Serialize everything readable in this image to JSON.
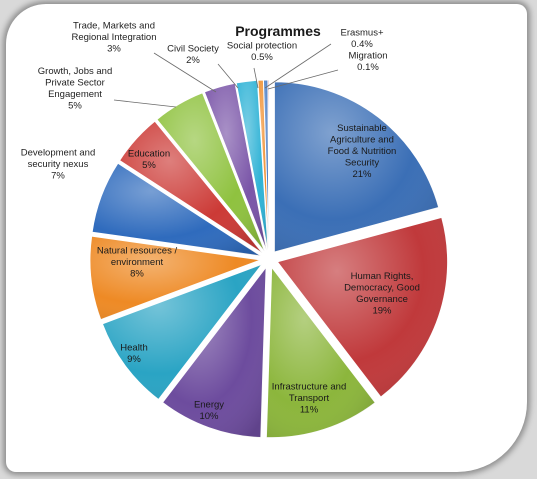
{
  "chart_data": {
    "type": "pie",
    "style": "exploded-3d",
    "title": "Programmes",
    "slices": [
      {
        "label": "Sustainable Agriculture and Food & Nutrition Security",
        "pct_label": "21%",
        "value": 21,
        "color": "#3b6fb6",
        "lines": [
          "Sustainable",
          "Agriculture and",
          "Food & Nutrition",
          "Security"
        ]
      },
      {
        "label": "Human Rights, Democracy, Good Governance",
        "pct_label": "19%",
        "value": 19,
        "color": "#c0393b",
        "lines": [
          "Human Rights,",
          "Democracy, Good",
          "Governance"
        ]
      },
      {
        "label": "Infrastructure and Transport",
        "pct_label": "11%",
        "value": 11,
        "color": "#8cb63c",
        "lines": [
          "Infrastructure and",
          "Transport"
        ]
      },
      {
        "label": "Energy",
        "pct_label": "10%",
        "value": 10,
        "color": "#6d4c9e",
        "lines": [
          "Energy"
        ]
      },
      {
        "label": "Health",
        "pct_label": "9%",
        "value": 9,
        "color": "#2aa4c4",
        "lines": [
          "Health"
        ]
      },
      {
        "label": "Natural resources / environment",
        "pct_label": "8%",
        "value": 8,
        "color": "#ee8a25",
        "lines": [
          "Natural resources /",
          "environment"
        ]
      },
      {
        "label": "Development and security nexus",
        "pct_label": "7%",
        "value": 7,
        "color": "#2f6bbd",
        "lines": [
          "Development and",
          "security nexus"
        ]
      },
      {
        "label": "Education",
        "pct_label": "5%",
        "value": 5,
        "color": "#cc3a36",
        "lines": [
          "Education"
        ]
      },
      {
        "label": "Growth, Jobs and Private Sector Engagement",
        "pct_label": "5%",
        "value": 5,
        "color": "#8fc23f",
        "lines": [
          "Growth, Jobs and",
          "Private Sector",
          "Engagement"
        ]
      },
      {
        "label": "Trade, Markets and Regional Integration",
        "pct_label": "3%",
        "value": 3,
        "color": "#7a55a8",
        "lines": [
          "Trade, Markets and",
          "Regional Integration"
        ]
      },
      {
        "label": "Civil Society",
        "pct_label": "2%",
        "value": 2,
        "color": "#30b3d6",
        "lines": [
          "Civil Society"
        ]
      },
      {
        "label": "Social protection",
        "pct_label": "0.5%",
        "value": 0.5,
        "color": "#f08d2c",
        "lines": [
          "Social protection"
        ]
      },
      {
        "label": "Erasmus+",
        "pct_label": "0.4%",
        "value": 0.4,
        "color": "#4a7cc4",
        "lines": [
          "Erasmus+"
        ]
      },
      {
        "label": "Migration",
        "pct_label": "0.1%",
        "value": 0.1,
        "color": "#c94a44",
        "lines": [
          "Migration"
        ]
      }
    ]
  }
}
